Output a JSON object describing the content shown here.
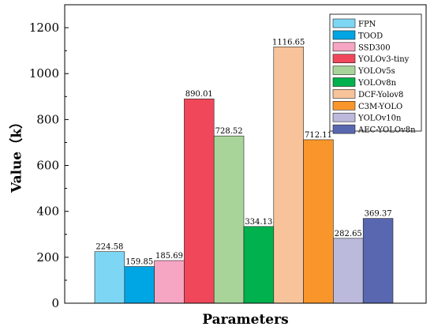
{
  "chart_data": {
    "type": "bar",
    "title": "",
    "xlabel": "Parameters",
    "ylabel": "Value（k）",
    "ylim": [
      0,
      1300
    ],
    "yticks": [
      0,
      200,
      400,
      600,
      800,
      1000,
      1200
    ],
    "grid": false,
    "legend_position": "top-right",
    "categories": [
      "FPN",
      "TOOD",
      "SSD300",
      "YOLOv3-tiny",
      "YOLOv5s",
      "YOLOv8n",
      "DCF-Yolov8",
      "C3M-YOLO",
      "YOLOv10n",
      "AEC-YOLOv8n"
    ],
    "values": [
      224.58,
      159.85,
      185.69,
      890.01,
      728.52,
      334.13,
      1116.65,
      712.11,
      282.65,
      369.37
    ],
    "value_labels": [
      "224.58",
      "159.85",
      "185.69",
      "890.01",
      "728.52",
      "334.13",
      "1116.65",
      "712.11",
      "282.65",
      "369.37"
    ],
    "colors": [
      "#7dd7f4",
      "#00a5e3",
      "#f6a5c2",
      "#f0485a",
      "#a8d49a",
      "#00b14d",
      "#f8c39a",
      "#f9962b",
      "#bbbadc",
      "#5867b0"
    ]
  }
}
